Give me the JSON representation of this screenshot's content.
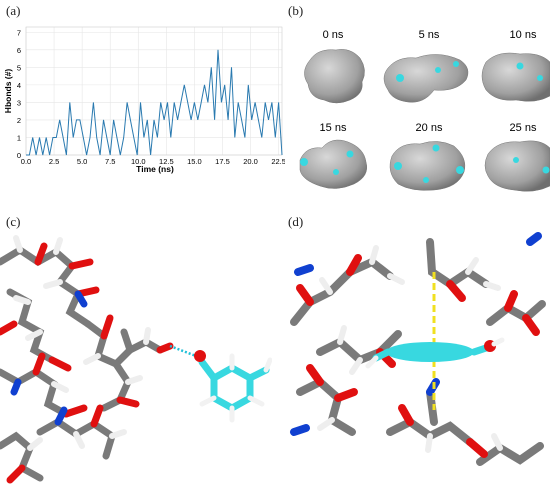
{
  "panels": {
    "a": {
      "label": "(a)"
    },
    "b": {
      "label": "(b)",
      "snapshots": [
        "0 ns",
        "5 ns",
        "10 ns",
        "15 ns",
        "20 ns",
        "25 ns"
      ]
    },
    "c": {
      "label": "(c)"
    },
    "d": {
      "label": "(d)"
    }
  },
  "colors": {
    "line": "#2a7ab0",
    "carbon": "#7a7a7a",
    "oxygen": "#e01010",
    "hydrogen": "#f2f2f2",
    "nitrogen": "#1040d0",
    "ligand": "#38d8e0",
    "hbond": "#22c0d8",
    "stacking": "#f0e020",
    "surface": "#a8a8a8"
  },
  "chart_data": {
    "type": "line",
    "xlabel": "Time (ns)",
    "ylabel": "Hbonds (#)",
    "xlim": [
      0,
      22.8
    ],
    "ylim": [
      0,
      7.3
    ],
    "xticks": [
      "0.0",
      "2.5",
      "5.0",
      "7.5",
      "10.0",
      "12.5",
      "15.0",
      "17.5",
      "20.0",
      "22.5"
    ],
    "yticks": [
      "0",
      "1",
      "2",
      "3",
      "4",
      "5",
      "6",
      "7"
    ],
    "grid": true,
    "series": [
      {
        "x": [
          0,
          0.3,
          0.6,
          0.9,
          1.2,
          1.5,
          1.8,
          2.1,
          2.4,
          2.7,
          3.0,
          3.3,
          3.6,
          3.9,
          4.2,
          4.5,
          4.8,
          5.1,
          5.4,
          5.7,
          6.0,
          6.3,
          6.6,
          6.9,
          7.2,
          7.5,
          7.8,
          8.1,
          8.4,
          8.7,
          9.0,
          9.3,
          9.6,
          9.9,
          10.2,
          10.5,
          10.8,
          11.1,
          11.4,
          11.7,
          12.0,
          12.3,
          12.6,
          12.9,
          13.2,
          13.5,
          13.8,
          14.1,
          14.4,
          14.7,
          15.0,
          15.3,
          15.6,
          15.9,
          16.2,
          16.5,
          16.8,
          17.1,
          17.4,
          17.7,
          18.0,
          18.3,
          18.6,
          18.9,
          19.2,
          19.5,
          19.8,
          20.1,
          20.4,
          20.7,
          21.0,
          21.3,
          21.6,
          21.9,
          22.2,
          22.5,
          22.8
        ],
        "values": [
          0,
          0,
          1,
          0,
          1,
          0,
          1,
          0,
          1,
          1,
          2,
          1,
          0,
          3,
          1,
          2,
          2,
          1,
          0,
          1,
          3,
          1,
          0,
          2,
          1,
          0,
          2,
          1,
          0,
          1,
          3,
          2,
          1,
          0,
          3,
          1,
          2,
          0,
          2,
          1,
          3,
          2,
          3,
          1,
          3,
          2,
          3,
          4,
          3,
          2,
          3,
          2,
          3,
          4,
          3,
          5,
          2,
          6,
          3,
          4,
          2,
          5,
          1,
          3,
          2,
          1,
          4,
          2,
          3,
          2,
          1,
          3,
          2,
          3,
          1,
          3,
          0
        ]
      }
    ]
  }
}
